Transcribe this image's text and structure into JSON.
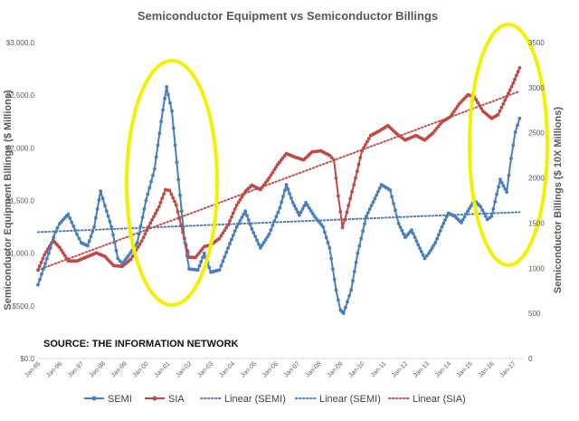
{
  "chart_data": {
    "type": "line",
    "title": "Semiconductor Equipment vs Semiconductor Billings",
    "ylabel_left": "Semiconductor Equipment Billings ($ Millions)",
    "ylabel_right": "Semiconductor Billings ($ 10X Millions)",
    "annotation": "SOURCE: THE INFORMATION NETWORK",
    "y_left": {
      "ticks": [
        "$0.0",
        "$500.0",
        "$1,000.0",
        "$1,500.0",
        "$2,000.0",
        "$2,500.0",
        "$3,000.0"
      ],
      "ylim": [
        0,
        3000
      ]
    },
    "y_right": {
      "ticks": [
        "0",
        "500",
        "1000",
        "1500",
        "2000",
        "2500",
        "3000",
        "3500"
      ],
      "ylim": [
        0,
        3500
      ]
    },
    "x_tick_labels": [
      "Jan-95",
      "Jan-96",
      "Jan-97",
      "Jan-98",
      "Jan-99",
      "Jan-00",
      "Jan-01",
      "Jan-02",
      "Jan-03",
      "Jan-04",
      "Jan-05",
      "Jan-06",
      "Jan-07",
      "Jan-08",
      "Jan-09",
      "Jan-10",
      "Jan-11",
      "Jan-12",
      "Jan-13",
      "Jan-14",
      "Jan-15",
      "Jan-16",
      "Jan-17"
    ],
    "x_start_year": 1995,
    "series": [
      {
        "name": "SEMI",
        "axis": "left",
        "color": "#4A7EBB",
        "anchors": [
          [
            1995.0,
            700
          ],
          [
            1995.5,
            1000
          ],
          [
            1995.8,
            1200
          ],
          [
            1996.0,
            1280
          ],
          [
            1996.4,
            1370
          ],
          [
            1996.8,
            1180
          ],
          [
            1997.0,
            1100
          ],
          [
            1997.3,
            1070
          ],
          [
            1997.6,
            1250
          ],
          [
            1997.9,
            1590
          ],
          [
            1998.1,
            1450
          ],
          [
            1998.4,
            1250
          ],
          [
            1998.7,
            950
          ],
          [
            1998.9,
            900
          ],
          [
            1999.2,
            980
          ],
          [
            1999.6,
            1100
          ],
          [
            2000.0,
            1500
          ],
          [
            2000.4,
            1800
          ],
          [
            2000.7,
            2250
          ],
          [
            2000.95,
            2580
          ],
          [
            2001.2,
            2350
          ],
          [
            2001.5,
            1700
          ],
          [
            2001.8,
            1100
          ],
          [
            2002.0,
            850
          ],
          [
            2002.4,
            840
          ],
          [
            2002.7,
            1000
          ],
          [
            2003.0,
            820
          ],
          [
            2003.4,
            840
          ],
          [
            2003.8,
            1050
          ],
          [
            2004.2,
            1250
          ],
          [
            2004.6,
            1400
          ],
          [
            2004.9,
            1230
          ],
          [
            2005.3,
            1050
          ],
          [
            2005.7,
            1180
          ],
          [
            2006.2,
            1430
          ],
          [
            2006.5,
            1650
          ],
          [
            2006.8,
            1480
          ],
          [
            2007.1,
            1360
          ],
          [
            2007.4,
            1480
          ],
          [
            2007.8,
            1350
          ],
          [
            2008.2,
            1250
          ],
          [
            2008.5,
            1050
          ],
          [
            2008.8,
            650
          ],
          [
            2009.0,
            460
          ],
          [
            2009.15,
            430
          ],
          [
            2009.5,
            650
          ],
          [
            2009.8,
            1000
          ],
          [
            2010.2,
            1350
          ],
          [
            2010.6,
            1520
          ],
          [
            2010.9,
            1650
          ],
          [
            2011.3,
            1600
          ],
          [
            2011.7,
            1280
          ],
          [
            2012.0,
            1150
          ],
          [
            2012.3,
            1220
          ],
          [
            2012.6,
            1080
          ],
          [
            2012.9,
            950
          ],
          [
            2013.1,
            1000
          ],
          [
            2013.4,
            1100
          ],
          [
            2013.7,
            1250
          ],
          [
            2014.0,
            1380
          ],
          [
            2014.3,
            1350
          ],
          [
            2014.6,
            1290
          ],
          [
            2014.9,
            1400
          ],
          [
            2015.2,
            1500
          ],
          [
            2015.5,
            1440
          ],
          [
            2015.8,
            1320
          ],
          [
            2016.0,
            1350
          ],
          [
            2016.4,
            1700
          ],
          [
            2016.7,
            1580
          ],
          [
            2016.9,
            1900
          ],
          [
            2017.1,
            2150
          ],
          [
            2017.3,
            2280
          ]
        ]
      },
      {
        "name": "SIA",
        "axis": "right",
        "color": "#BE4B48",
        "anchors": [
          [
            1995.0,
            980
          ],
          [
            1995.3,
            1150
          ],
          [
            1995.7,
            1310
          ],
          [
            1996.0,
            1230
          ],
          [
            1996.4,
            1080
          ],
          [
            1996.8,
            1080
          ],
          [
            1997.2,
            1120
          ],
          [
            1997.7,
            1170
          ],
          [
            1998.1,
            1130
          ],
          [
            1998.5,
            1030
          ],
          [
            1998.9,
            1020
          ],
          [
            1999.3,
            1100
          ],
          [
            1999.8,
            1300
          ],
          [
            2000.2,
            1500
          ],
          [
            2000.6,
            1680
          ],
          [
            2000.9,
            1870
          ],
          [
            2001.1,
            1860
          ],
          [
            2001.4,
            1700
          ],
          [
            2001.7,
            1400
          ],
          [
            2002.0,
            1120
          ],
          [
            2002.3,
            1120
          ],
          [
            2002.7,
            1240
          ],
          [
            2003.0,
            1260
          ],
          [
            2003.4,
            1330
          ],
          [
            2003.8,
            1480
          ],
          [
            2004.2,
            1700
          ],
          [
            2004.6,
            1850
          ],
          [
            2004.9,
            1920
          ],
          [
            2005.3,
            1870
          ],
          [
            2005.7,
            2000
          ],
          [
            2006.1,
            2150
          ],
          [
            2006.5,
            2270
          ],
          [
            2006.9,
            2230
          ],
          [
            2007.3,
            2200
          ],
          [
            2007.7,
            2290
          ],
          [
            2008.1,
            2300
          ],
          [
            2008.5,
            2250
          ],
          [
            2008.7,
            2200
          ],
          [
            2008.9,
            1800
          ],
          [
            2009.1,
            1450
          ],
          [
            2009.3,
            1620
          ],
          [
            2009.7,
            2000
          ],
          [
            2010.0,
            2300
          ],
          [
            2010.4,
            2470
          ],
          [
            2010.8,
            2520
          ],
          [
            2011.2,
            2580
          ],
          [
            2011.6,
            2490
          ],
          [
            2012.0,
            2420
          ],
          [
            2012.5,
            2470
          ],
          [
            2012.9,
            2420
          ],
          [
            2013.3,
            2500
          ],
          [
            2013.7,
            2620
          ],
          [
            2014.1,
            2680
          ],
          [
            2014.5,
            2820
          ],
          [
            2014.9,
            2920
          ],
          [
            2015.2,
            2900
          ],
          [
            2015.6,
            2740
          ],
          [
            2016.0,
            2660
          ],
          [
            2016.3,
            2700
          ],
          [
            2016.7,
            2900
          ],
          [
            2017.0,
            3050
          ],
          [
            2017.3,
            3220
          ]
        ]
      }
    ],
    "trendlines": [
      {
        "name": "Linear  (SEMI)",
        "axis": "left",
        "color": "#4A7EBB",
        "from": [
          1995.0,
          1200
        ],
        "to": [
          2017.3,
          1390
        ]
      },
      {
        "name": "Linear  (SIA)",
        "axis": "right",
        "color": "#C0504D",
        "from": [
          1995.0,
          980
        ],
        "to": [
          2017.3,
          2960
        ]
      }
    ],
    "legend": {
      "position": "bottom",
      "entries": [
        {
          "label": "SEMI",
          "color": "#4A7EBB",
          "style": "line-marker"
        },
        {
          "label": "SIA",
          "color": "#BE4B48",
          "style": "line-marker"
        },
        {
          "label": "Linear  (SEMI)",
          "color": "#4A7EBB",
          "style": "dotted"
        },
        {
          "label": "Linear  (SEMI)",
          "color": "#4A7EBB",
          "style": "dotted"
        },
        {
          "label": "Linear  (SIA)",
          "color": "#C0504D",
          "style": "dotted"
        }
      ]
    },
    "highlights": [
      {
        "shape": "ellipse",
        "color": "#F2F200",
        "around": "2000–2001 peak"
      },
      {
        "shape": "ellipse",
        "color": "#F2F200",
        "around": "2015–2017 rise"
      }
    ]
  }
}
